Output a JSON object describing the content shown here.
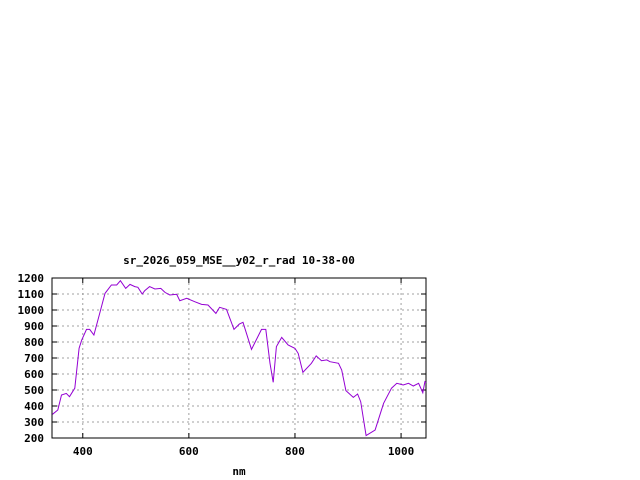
{
  "chart_data": {
    "type": "line",
    "title": "sr_2026_059_MSE__y02_r_rad 10-38-00",
    "xlabel": "nm",
    "ylabel": "",
    "xlim": [
      342,
      1047
    ],
    "ylim": [
      200,
      1200
    ],
    "xticks": [
      400,
      600,
      800,
      1000
    ],
    "yticks": [
      200,
      300,
      400,
      500,
      600,
      700,
      800,
      900,
      1000,
      1100,
      1200
    ],
    "grid": true,
    "legend": "none",
    "line_color": "#9400d3",
    "series": [
      {
        "x": [
          343,
          353,
          360,
          369,
          375,
          385,
          393,
          398,
          407,
          413,
          421,
          432,
          442,
          454,
          464,
          471,
          481,
          489,
          498,
          504,
          512,
          517,
          526,
          536,
          547,
          555,
          564,
          577,
          583,
          596,
          611,
          624,
          636,
          651,
          658,
          671,
          685,
          695,
          702,
          718,
          737,
          745,
          753,
          759,
          765,
          775,
          787,
          800,
          806,
          815,
          831,
          840,
          850,
          860,
          866,
          882,
          888,
          896,
          910,
          918,
          924,
          934,
          951,
          967,
          982,
          992,
          1004,
          1014,
          1023,
          1033,
          1041,
          1045,
          1047
        ],
        "y": [
          348,
          375,
          469,
          479,
          458,
          511,
          761,
          812,
          879,
          879,
          844,
          979,
          1104,
          1156,
          1156,
          1183,
          1135,
          1160,
          1146,
          1142,
          1100,
          1121,
          1146,
          1131,
          1135,
          1110,
          1094,
          1098,
          1058,
          1073,
          1052,
          1035,
          1031,
          979,
          1017,
          1004,
          879,
          912,
          923,
          754,
          879,
          879,
          667,
          548,
          771,
          829,
          781,
          760,
          729,
          610,
          667,
          713,
          683,
          688,
          677,
          667,
          625,
          496,
          454,
          475,
          427,
          215,
          250,
          417,
          511,
          542,
          531,
          542,
          525,
          542,
          483,
          552,
          545
        ]
      }
    ]
  }
}
